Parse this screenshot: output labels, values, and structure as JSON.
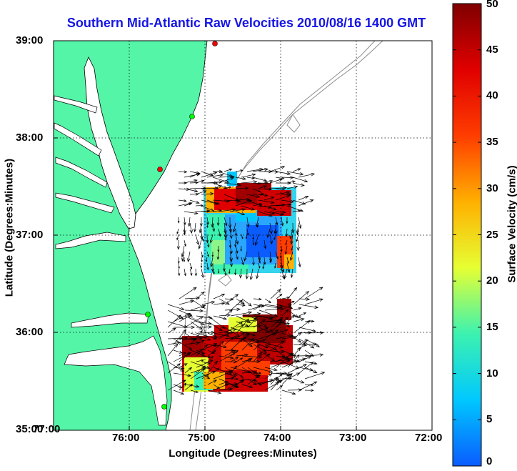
{
  "title": "Southern Mid-Atlantic Raw Velocities 2010/08/16 1400 GMT",
  "x_axis": {
    "label": "Longitude (Degrees:Minutes)",
    "ticks": [
      "77:00",
      "76:00",
      "75:00",
      "74:00",
      "73:00",
      "72:00"
    ]
  },
  "y_axis": {
    "label": "Latitude (Degrees:Minutes)",
    "ticks": [
      "39:00",
      "38:00",
      "37:00",
      "36:00",
      "35:00"
    ]
  },
  "colorbar": {
    "label": "Surface Velocity (cm/s)",
    "ticks": [
      "50",
      "45",
      "40",
      "35",
      "30",
      "25",
      "20",
      "15",
      "10",
      "5",
      "0"
    ],
    "min": 0,
    "max": 50,
    "stops": [
      "#0a5cff",
      "#00c8ff",
      "#3cf2b0",
      "#e6ff33",
      "#ffb000",
      "#ff3d00",
      "#e00000",
      "#800000"
    ]
  },
  "map": {
    "extent": {
      "lon": [
        -77,
        -72
      ],
      "lat": [
        35,
        39
      ]
    },
    "grid": "dotted",
    "land_color": "#55f5a8",
    "bathymetry_color": "#8c8c8c",
    "station_colors": [
      "#00ff00",
      "#ff0000"
    ]
  }
}
